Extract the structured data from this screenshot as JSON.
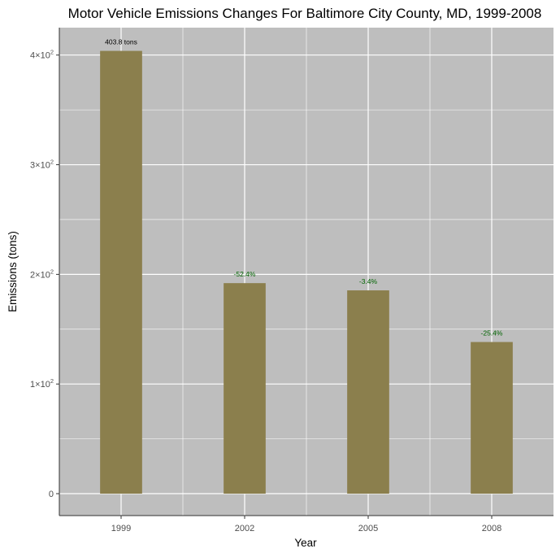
{
  "chart_data": {
    "type": "bar",
    "title": "Motor Vehicle Emissions Changes For Baltimore City County, MD, 1999-2008",
    "xlabel": "Year",
    "ylabel": "Emissions (tons)",
    "categories": [
      "1999",
      "2002",
      "2005",
      "2008"
    ],
    "values": [
      403.8,
      192.0,
      185.4,
      138.3
    ],
    "bar_labels": [
      "403.8 tons",
      "-52.4%",
      "-3.4%",
      "-25.4%"
    ],
    "ylim": [
      -20,
      425
    ],
    "y_ticks": [
      {
        "value": 0,
        "label": "0",
        "exp": ""
      },
      {
        "value": 100,
        "label": "1×10",
        "exp": "2"
      },
      {
        "value": 200,
        "label": "2×10",
        "exp": "2"
      },
      {
        "value": 300,
        "label": "3×10",
        "exp": "2"
      },
      {
        "value": 400,
        "label": "4×10",
        "exp": "2"
      }
    ],
    "grid": true,
    "colors": {
      "bar": "#8b7f4d",
      "panel": "#bebebe",
      "grid": "#ffffff",
      "first_label": "#000000",
      "change_label": "#006400"
    }
  }
}
